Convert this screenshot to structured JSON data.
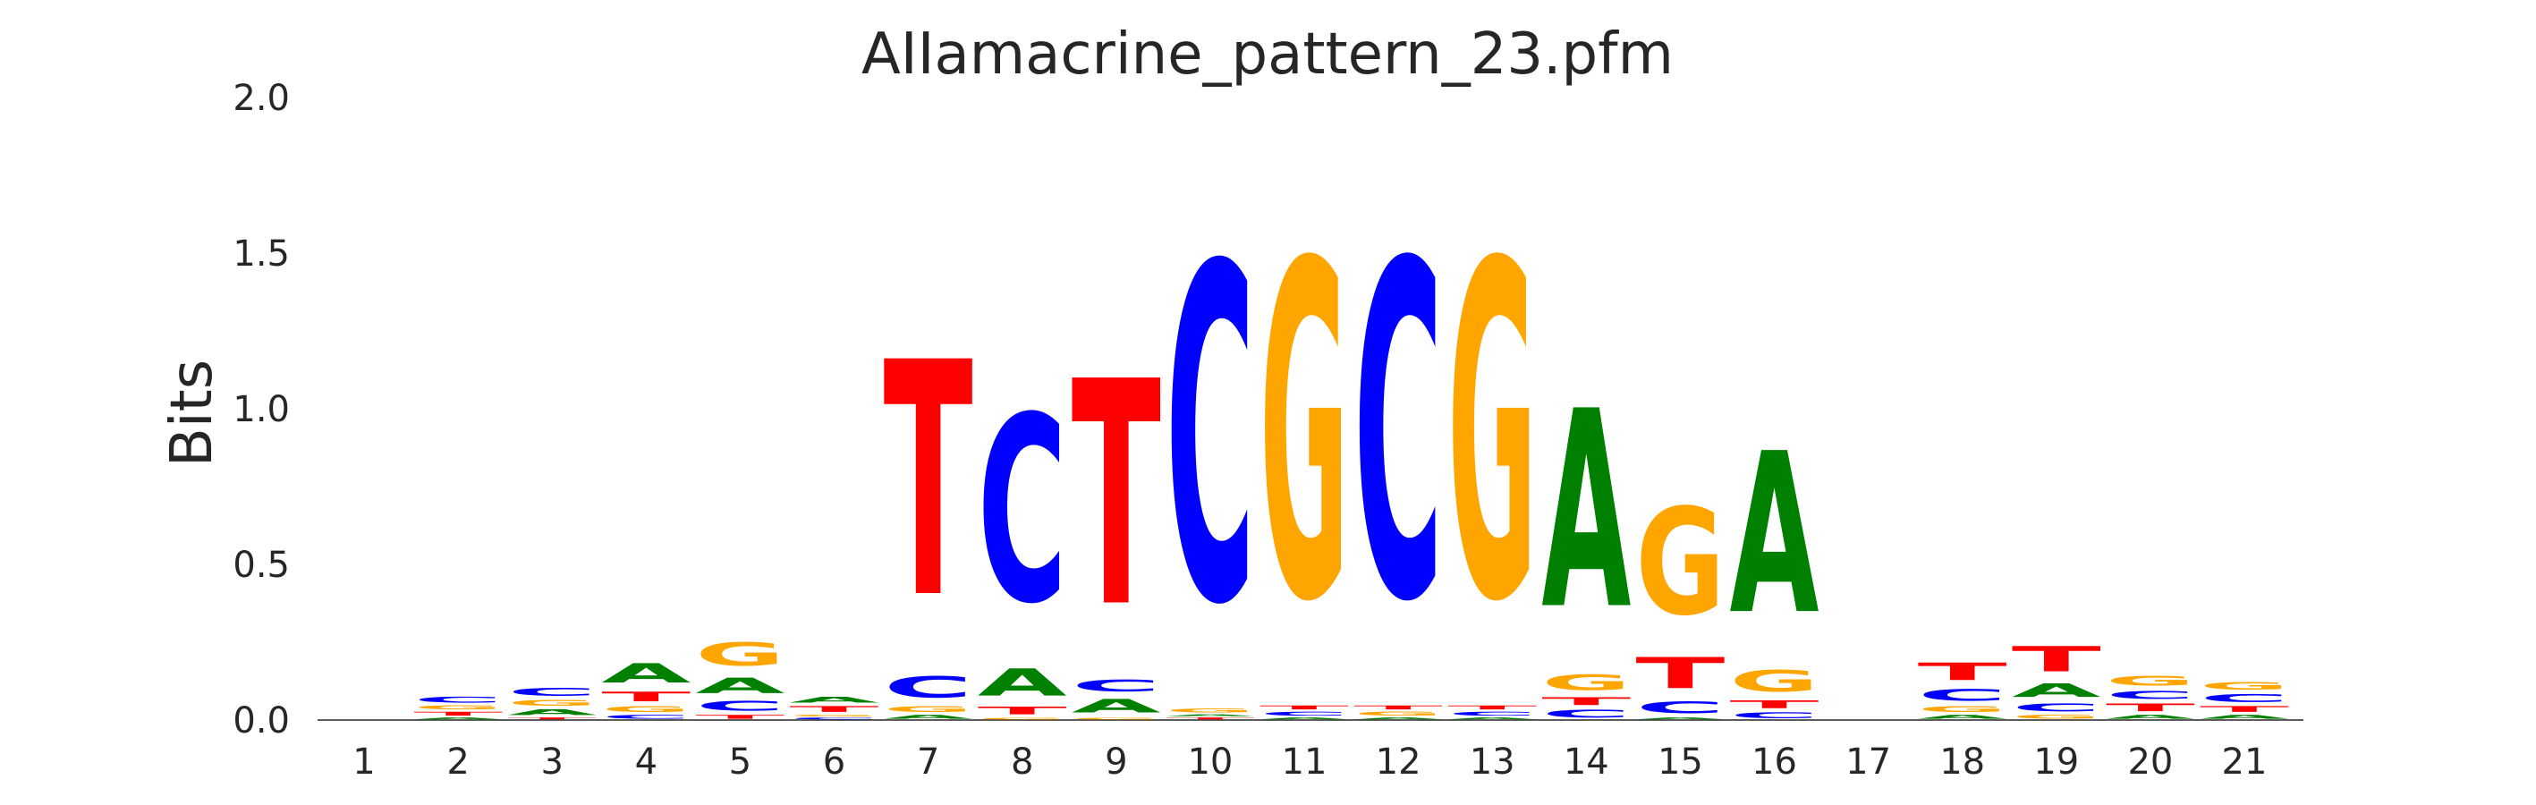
{
  "chart_data": {
    "type": "sequence-logo",
    "title": "AIIamacrine_pattern_23.pfm",
    "ylabel": "Bits",
    "xlabel": "",
    "ylim": [
      0,
      2.0
    ],
    "yticks": [
      "0.0",
      "0.5",
      "1.0",
      "1.5",
      "2.0"
    ],
    "positions": [
      "1",
      "2",
      "3",
      "4",
      "5",
      "6",
      "7",
      "8",
      "9",
      "10",
      "11",
      "12",
      "13",
      "14",
      "15",
      "16",
      "17",
      "18",
      "19",
      "20",
      "21"
    ],
    "colors": {
      "A": "#008000",
      "C": "#0000ff",
      "G": "#ffa500",
      "T": "#ff0000"
    },
    "grid": false,
    "stacks": [
      [],
      [
        {
          "base": "A",
          "h": 0.01
        },
        {
          "base": "T",
          "h": 0.02
        },
        {
          "base": "G",
          "h": 0.02
        },
        {
          "base": "C",
          "h": 0.03
        }
      ],
      [
        {
          "base": "T",
          "h": 0.01
        },
        {
          "base": "A",
          "h": 0.03
        },
        {
          "base": "G",
          "h": 0.03
        },
        {
          "base": "C",
          "h": 0.04
        }
      ],
      [
        {
          "base": "C",
          "h": 0.02
        },
        {
          "base": "G",
          "h": 0.03
        },
        {
          "base": "T",
          "h": 0.05
        },
        {
          "base": "A",
          "h": 0.1
        }
      ],
      [
        {
          "base": "T",
          "h": 0.02
        },
        {
          "base": "C",
          "h": 0.05
        },
        {
          "base": "A",
          "h": 0.08
        },
        {
          "base": "G",
          "h": 0.12
        }
      ],
      [
        {
          "base": "C",
          "h": 0.01
        },
        {
          "base": "G",
          "h": 0.01
        },
        {
          "base": "T",
          "h": 0.03
        },
        {
          "base": "A",
          "h": 0.03
        }
      ],
      [
        {
          "base": "A",
          "h": 0.02
        },
        {
          "base": "G",
          "h": 0.03
        },
        {
          "base": "C",
          "h": 0.11
        },
        {
          "base": "T",
          "h": 1.21
        }
      ],
      [
        {
          "base": "G",
          "h": 0.01
        },
        {
          "base": "T",
          "h": 0.04
        },
        {
          "base": "A",
          "h": 0.14
        },
        {
          "base": "C",
          "h": 0.96
        }
      ],
      [
        {
          "base": "G",
          "h": 0.01
        },
        {
          "base": "A",
          "h": 0.07
        },
        {
          "base": "C",
          "h": 0.06
        },
        {
          "base": "T",
          "h": 1.16
        }
      ],
      [
        {
          "base": "T",
          "h": 0.01
        },
        {
          "base": "A",
          "h": 0.01
        },
        {
          "base": "G",
          "h": 0.02
        },
        {
          "base": "C",
          "h": 1.73
        }
      ],
      [
        {
          "base": "A",
          "h": 0.01
        },
        {
          "base": "C",
          "h": 0.02
        },
        {
          "base": "T",
          "h": 0.02
        },
        {
          "base": "G",
          "h": 1.73
        }
      ],
      [
        {
          "base": "A",
          "h": 0.01
        },
        {
          "base": "G",
          "h": 0.02
        },
        {
          "base": "T",
          "h": 0.02
        },
        {
          "base": "C",
          "h": 1.73
        }
      ],
      [
        {
          "base": "A",
          "h": 0.01
        },
        {
          "base": "C",
          "h": 0.02
        },
        {
          "base": "T",
          "h": 0.02
        },
        {
          "base": "G",
          "h": 1.73
        }
      ],
      [
        {
          "base": "C",
          "h": 0.04
        },
        {
          "base": "T",
          "h": 0.04
        },
        {
          "base": "G",
          "h": 0.08
        },
        {
          "base": "A",
          "h": 1.02
        }
      ],
      [
        {
          "base": "A",
          "h": 0.01
        },
        {
          "base": "C",
          "h": 0.06
        },
        {
          "base": "T",
          "h": 0.16
        },
        {
          "base": "G",
          "h": 0.55
        }
      ],
      [
        {
          "base": "C",
          "h": 0.03
        },
        {
          "base": "T",
          "h": 0.04
        },
        {
          "base": "G",
          "h": 0.11
        },
        {
          "base": "A",
          "h": 0.83
        }
      ],
      [],
      [
        {
          "base": "A",
          "h": 0.02
        },
        {
          "base": "G",
          "h": 0.03
        },
        {
          "base": "C",
          "h": 0.06
        },
        {
          "base": "T",
          "h": 0.09
        }
      ],
      [
        {
          "base": "G",
          "h": 0.02
        },
        {
          "base": "C",
          "h": 0.04
        },
        {
          "base": "A",
          "h": 0.07
        },
        {
          "base": "T",
          "h": 0.13
        }
      ],
      [
        {
          "base": "A",
          "h": 0.02
        },
        {
          "base": "T",
          "h": 0.04
        },
        {
          "base": "C",
          "h": 0.04
        },
        {
          "base": "G",
          "h": 0.05
        }
      ],
      [
        {
          "base": "A",
          "h": 0.02
        },
        {
          "base": "T",
          "h": 0.03
        },
        {
          "base": "C",
          "h": 0.04
        },
        {
          "base": "G",
          "h": 0.04
        }
      ]
    ]
  }
}
